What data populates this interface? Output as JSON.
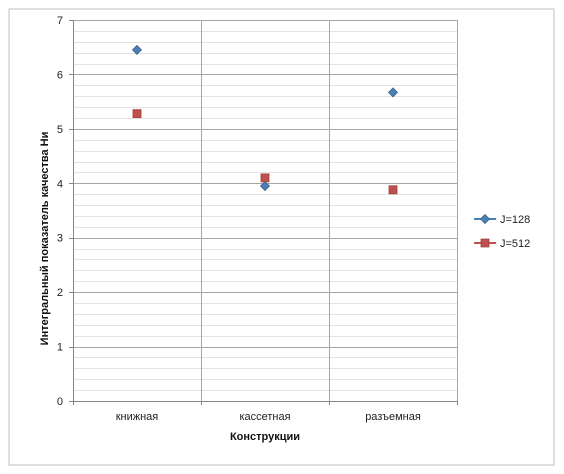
{
  "chart_data": {
    "type": "scatter",
    "categories": [
      "книжная",
      "кассетная",
      "разъемная"
    ],
    "series": [
      {
        "name": "J=128",
        "values": [
          6.45,
          3.95,
          5.67
        ],
        "color": "#4a7eb5",
        "marker": "diamond"
      },
      {
        "name": "J=512",
        "values": [
          5.28,
          4.1,
          3.88
        ],
        "color": "#c0504d",
        "marker": "square"
      }
    ],
    "xlabel": "Конструкции",
    "ylabel": "Интегральный показатель качества Hи",
    "ylim": [
      0,
      7
    ],
    "yticks": [
      0,
      1,
      2,
      3,
      4,
      5,
      6,
      7
    ],
    "minor_y_step": 0.2,
    "grid": true,
    "legend_position": "right"
  }
}
